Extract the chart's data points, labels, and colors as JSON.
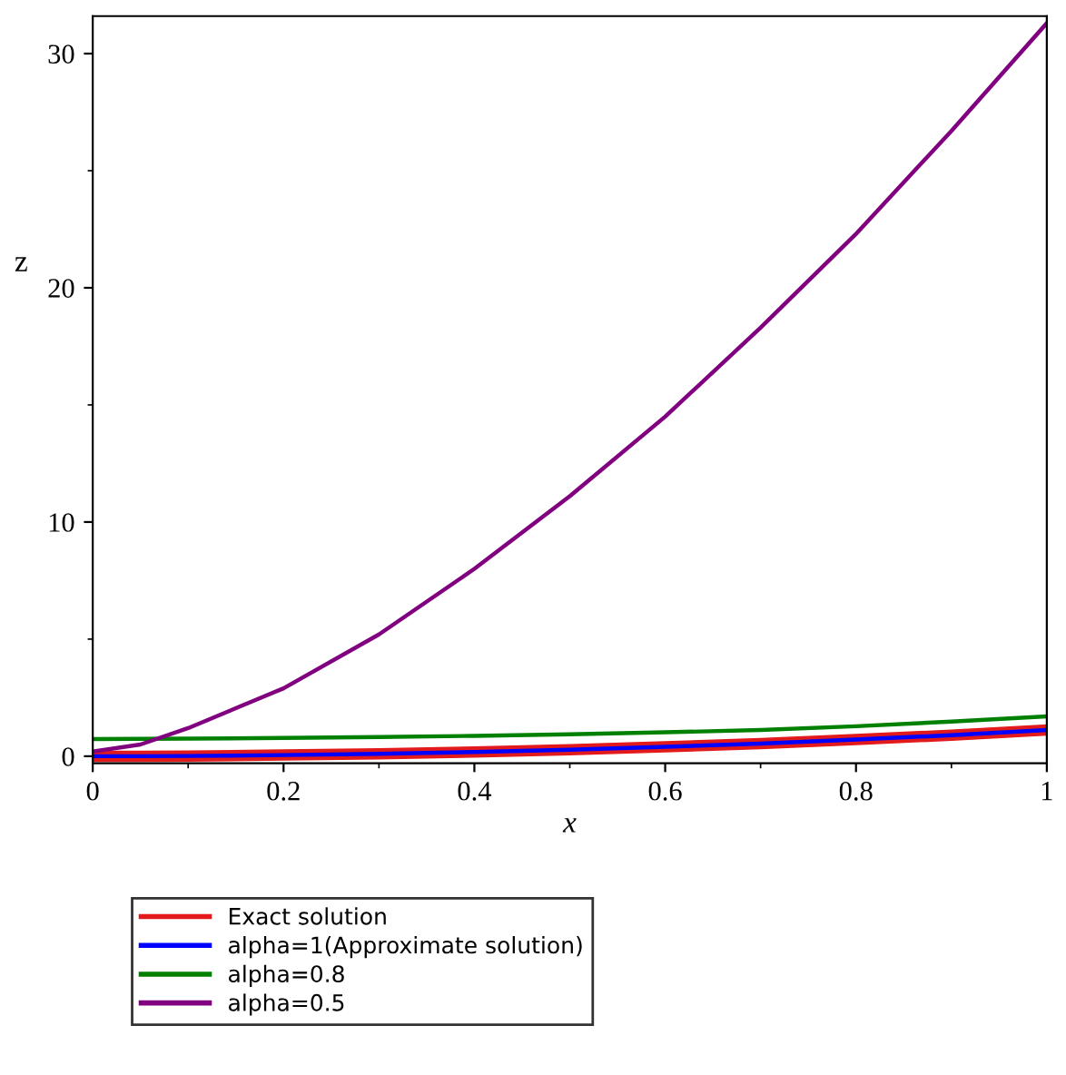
{
  "chart_data": {
    "type": "line",
    "xlabel": "x",
    "ylabel": "z",
    "xlim": [
      0,
      1
    ],
    "ylim": [
      -0.3,
      31.6
    ],
    "xticks": [
      0,
      0.2,
      0.4,
      0.6,
      0.8,
      1
    ],
    "yticks": [
      0,
      10,
      20,
      30
    ],
    "grid": false,
    "legend": "bottom",
    "line_style": "solid",
    "marker": "none",
    "x": [
      0,
      0.05,
      0.1,
      0.2,
      0.3,
      0.4,
      0.5,
      0.6,
      0.7,
      0.8,
      0.9,
      1
    ],
    "series": [
      {
        "name": "Exact solution",
        "color": "#e31a1c",
        "values": [
          0,
          0,
          0.01,
          0.05,
          0.1,
          0.18,
          0.28,
          0.4,
          0.54,
          0.71,
          0.9,
          1.12
        ]
      },
      {
        "name": "alpha=1(Approximate solution)",
        "color": "#0000ff",
        "values": [
          0,
          0,
          0.01,
          0.05,
          0.1,
          0.18,
          0.28,
          0.4,
          0.54,
          0.71,
          0.9,
          1.12
        ]
      },
      {
        "name": "alpha=0.8",
        "color": "#008000",
        "values": [
          0.73,
          0.74,
          0.75,
          0.78,
          0.82,
          0.87,
          0.94,
          1.02,
          1.12,
          1.28,
          1.48,
          1.7
        ]
      },
      {
        "name": "alpha=0.5",
        "color": "#800080",
        "values": [
          0.2,
          0.5,
          1.2,
          2.9,
          5.2,
          8.0,
          11.1,
          14.5,
          18.3,
          22.3,
          26.7,
          31.3
        ]
      }
    ]
  }
}
